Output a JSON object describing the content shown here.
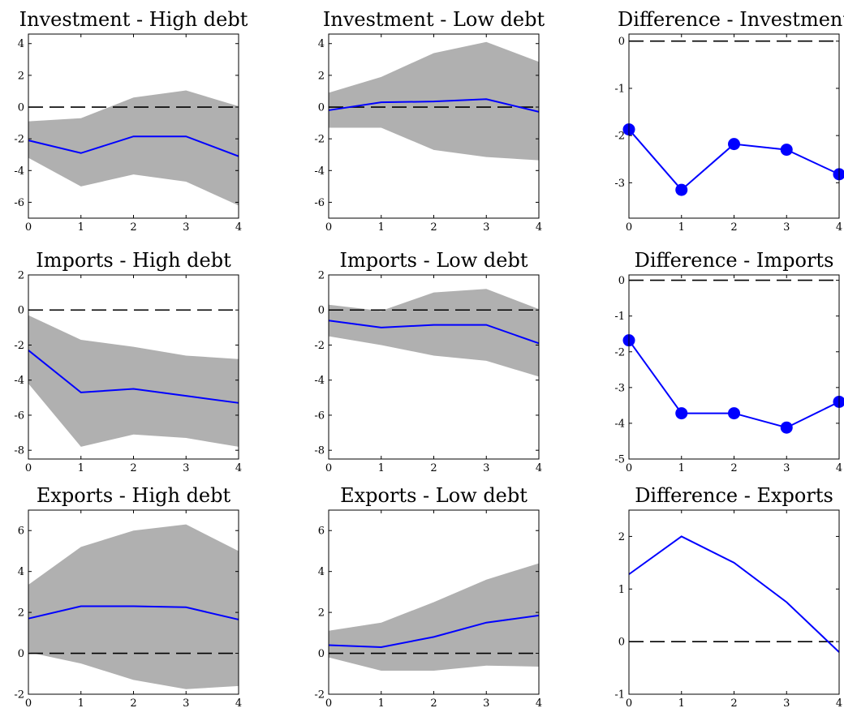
{
  "chart_data": [
    {
      "type": "line",
      "title": "Investment - High debt",
      "x": [
        0,
        1,
        2,
        3,
        4
      ],
      "xticks": [
        0,
        1,
        2,
        3,
        4
      ],
      "xlim": [
        0,
        4
      ],
      "ylim": [
        -7,
        4.6
      ],
      "yticks": [
        -6,
        -4,
        -2,
        0,
        2,
        4
      ],
      "zero_line": true,
      "series": [
        {
          "values": [
            -2.1,
            -2.9,
            -1.85,
            -1.85,
            -3.1
          ],
          "color": "#0000ff",
          "markers": false
        }
      ],
      "band": {
        "lower": [
          -3.2,
          -5.0,
          -4.25,
          -4.7,
          -6.2
        ],
        "upper": [
          -0.9,
          -0.7,
          0.6,
          1.05,
          0.05
        ],
        "color": "#b0b0b0"
      }
    },
    {
      "type": "line",
      "title": "Investment - Low debt",
      "x": [
        0,
        1,
        2,
        3,
        4
      ],
      "xticks": [
        0,
        1,
        2,
        3,
        4
      ],
      "xlim": [
        0,
        4
      ],
      "ylim": [
        -7,
        4.6
      ],
      "yticks": [
        -6,
        -4,
        -2,
        0,
        2,
        4
      ],
      "zero_line": true,
      "series": [
        {
          "values": [
            -0.2,
            0.3,
            0.35,
            0.5,
            -0.3
          ],
          "color": "#0000ff",
          "markers": false
        }
      ],
      "band": {
        "lower": [
          -1.3,
          -1.3,
          -2.7,
          -3.15,
          -3.35
        ],
        "upper": [
          0.9,
          1.9,
          3.4,
          4.1,
          2.85
        ],
        "color": "#b0b0b0"
      }
    },
    {
      "type": "line",
      "title": "Difference - Investment",
      "x": [
        0,
        1,
        2,
        3,
        4
      ],
      "xticks": [
        0,
        1,
        2,
        3,
        4
      ],
      "xlim": [
        0,
        4
      ],
      "ylim": [
        -3.75,
        0.15
      ],
      "yticks": [
        -3,
        -2,
        -1,
        0
      ],
      "zero_line": true,
      "series": [
        {
          "values": [
            -1.87,
            -3.15,
            -2.18,
            -2.3,
            -2.82
          ],
          "color": "#0000ff",
          "markers": true
        }
      ]
    },
    {
      "type": "line",
      "title": "Imports - High debt",
      "x": [
        0,
        1,
        2,
        3,
        4
      ],
      "xticks": [
        0,
        1,
        2,
        3,
        4
      ],
      "xlim": [
        0,
        4
      ],
      "ylim": [
        -8.5,
        2
      ],
      "yticks": [
        -8,
        -6,
        -4,
        -2,
        0,
        2
      ],
      "zero_line": true,
      "series": [
        {
          "values": [
            -2.3,
            -4.7,
            -4.5,
            -4.9,
            -5.3
          ],
          "color": "#0000ff",
          "markers": false
        }
      ],
      "band": {
        "lower": [
          -4.2,
          -7.8,
          -7.1,
          -7.3,
          -7.8
        ],
        "upper": [
          -0.3,
          -1.7,
          -2.1,
          -2.6,
          -2.8
        ],
        "color": "#b0b0b0"
      }
    },
    {
      "type": "line",
      "title": "Imports - Low debt",
      "x": [
        0,
        1,
        2,
        3,
        4
      ],
      "xticks": [
        0,
        1,
        2,
        3,
        4
      ],
      "xlim": [
        0,
        4
      ],
      "ylim": [
        -8.5,
        2
      ],
      "yticks": [
        -8,
        -6,
        -4,
        -2,
        0,
        2
      ],
      "zero_line": true,
      "series": [
        {
          "values": [
            -0.6,
            -1.0,
            -0.85,
            -0.85,
            -1.9
          ],
          "color": "#0000ff",
          "markers": false
        }
      ],
      "band": {
        "lower": [
          -1.5,
          -2.0,
          -2.6,
          -2.9,
          -3.8
        ],
        "upper": [
          0.3,
          -0.05,
          1.0,
          1.2,
          0.05
        ],
        "color": "#b0b0b0"
      }
    },
    {
      "type": "line",
      "title": "Difference - Imports",
      "x": [
        0,
        1,
        2,
        3,
        4
      ],
      "xticks": [
        0,
        1,
        2,
        3,
        4
      ],
      "xlim": [
        0,
        4
      ],
      "ylim": [
        -5,
        0.15
      ],
      "yticks": [
        -5,
        -4,
        -3,
        -2,
        -1,
        0
      ],
      "zero_line": true,
      "series": [
        {
          "values": [
            -1.68,
            -3.72,
            -3.72,
            -4.12,
            -3.4
          ],
          "color": "#0000ff",
          "markers": true
        }
      ]
    },
    {
      "type": "line",
      "title": "Exports - High debt",
      "x": [
        0,
        1,
        2,
        3,
        4
      ],
      "xticks": [
        0,
        1,
        2,
        3,
        4
      ],
      "xlim": [
        0,
        4
      ],
      "ylim": [
        -2,
        7
      ],
      "yticks": [
        -2,
        0,
        2,
        4,
        6
      ],
      "zero_line": true,
      "series": [
        {
          "values": [
            1.7,
            2.3,
            2.3,
            2.25,
            1.65
          ],
          "color": "#0000ff",
          "markers": false
        }
      ],
      "band": {
        "lower": [
          0.05,
          -0.5,
          -1.3,
          -1.75,
          -1.6
        ],
        "upper": [
          3.35,
          5.2,
          6.0,
          6.3,
          5.0
        ],
        "color": "#b0b0b0"
      }
    },
    {
      "type": "line",
      "title": "Exports - Low debt",
      "x": [
        0,
        1,
        2,
        3,
        4
      ],
      "xticks": [
        0,
        1,
        2,
        3,
        4
      ],
      "xlim": [
        0,
        4
      ],
      "ylim": [
        -2,
        7
      ],
      "yticks": [
        -2,
        0,
        2,
        4,
        6
      ],
      "zero_line": true,
      "series": [
        {
          "values": [
            0.4,
            0.3,
            0.8,
            1.5,
            1.85
          ],
          "color": "#0000ff",
          "markers": false
        }
      ],
      "band": {
        "lower": [
          -0.2,
          -0.85,
          -0.85,
          -0.6,
          -0.65
        ],
        "upper": [
          1.1,
          1.5,
          2.5,
          3.6,
          4.4
        ],
        "color": "#b0b0b0"
      }
    },
    {
      "type": "line",
      "title": "Difference - Exports",
      "x": [
        0,
        1,
        2,
        3,
        4
      ],
      "xticks": [
        0,
        1,
        2,
        3,
        4
      ],
      "xlim": [
        0,
        4
      ],
      "ylim": [
        -1,
        2.5
      ],
      "yticks": [
        -1,
        0,
        1,
        2
      ],
      "zero_line": true,
      "series": [
        {
          "values": [
            1.28,
            2.0,
            1.5,
            0.75,
            -0.2
          ],
          "color": "#0000ff",
          "markers": false
        }
      ]
    }
  ]
}
